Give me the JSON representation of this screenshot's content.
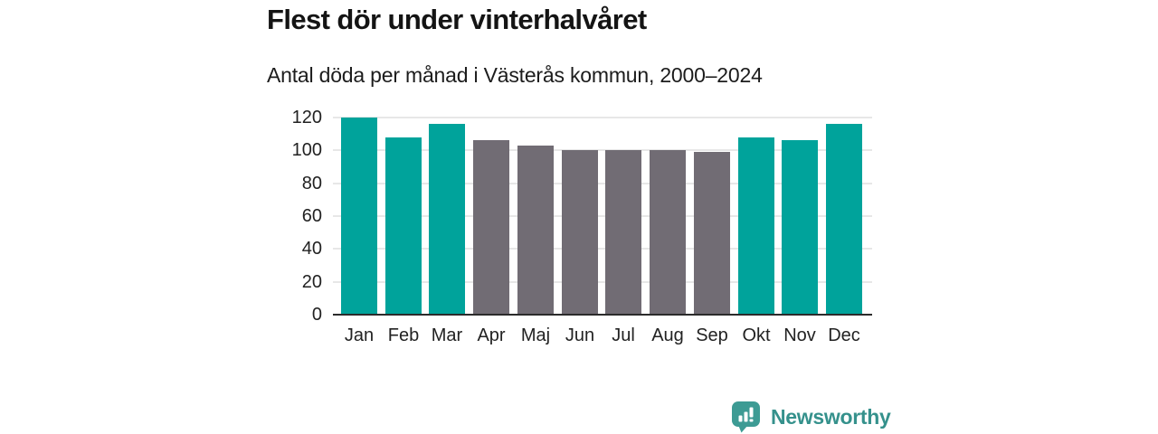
{
  "title": "Flest dör under vinterhalvåret",
  "subtitle": "Antal döda per månad i Västerås kommun, 2000–2024",
  "branding": {
    "name": "Newsworthy",
    "icon": "newsworthy-bar-chart-bubble-icon",
    "text_color": "#35918C",
    "icon_color": "#3D9B94"
  },
  "colors": {
    "winter": "#00A39B",
    "summer": "#716C74",
    "gridline": "#E7E7E7",
    "axis": "#2B2B2B"
  },
  "chart_data": {
    "type": "bar",
    "title": "Flest dör under vinterhalvåret",
    "subtitle": "Antal döda per månad i Västerås kommun, 2000–2024",
    "categories": [
      "Jan",
      "Feb",
      "Mar",
      "Apr",
      "Maj",
      "Jun",
      "Jul",
      "Aug",
      "Sep",
      "Okt",
      "Nov",
      "Dec"
    ],
    "values": [
      120,
      108,
      116,
      106,
      103,
      100,
      100,
      100,
      99,
      108,
      106,
      116
    ],
    "bar_colors": [
      "winter",
      "winter",
      "winter",
      "summer",
      "summer",
      "summer",
      "summer",
      "summer",
      "summer",
      "winter",
      "winter",
      "winter"
    ],
    "xlabel": "",
    "ylabel": "",
    "ylim": [
      0,
      120
    ],
    "yticks": [
      0,
      20,
      40,
      60,
      80,
      100,
      120
    ],
    "grid": true,
    "legend": false
  }
}
